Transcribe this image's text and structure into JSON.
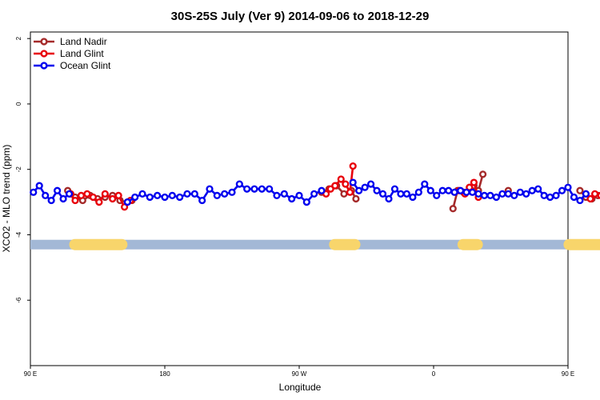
{
  "chart_data": {
    "type": "line",
    "title": "30S-25S July (Ver 9)   2014-09-06 to 2018-12-29",
    "xlabel": "Longitude",
    "ylabel": "XCO2 - MLO trend (ppm)",
    "xlim": [
      90,
      450
    ],
    "ylim": [
      -8,
      2.2
    ],
    "x_ticks": [
      {
        "value": 90,
        "label": "90 E"
      },
      {
        "value": 180,
        "label": "180"
      },
      {
        "value": 270,
        "label": "90 W"
      },
      {
        "value": 360,
        "label": "0"
      },
      {
        "value": 450,
        "label": "90 E"
      },
      {
        "value": 540,
        "label": "180"
      }
    ],
    "y_ticks": [
      {
        "value": 2,
        "label": "2"
      },
      {
        "value": 0,
        "label": "0"
      },
      {
        "value": -2,
        "label": "-2"
      },
      {
        "value": -4,
        "label": "-4"
      },
      {
        "value": -6,
        "label": "-6"
      }
    ],
    "legend_position": "top-left",
    "land_ocean_bar": {
      "y": -4.3,
      "ocean_color": "#a3b8d6",
      "land_color": "#f8d56b",
      "land_ranges": [
        [
          116,
          155
        ],
        [
          290,
          311
        ],
        [
          376,
          393
        ],
        [
          447,
          487
        ]
      ]
    },
    "series": [
      {
        "name": "Land Nadir",
        "color": "#a52a2a",
        "segments": [
          {
            "x": [
              115,
              120,
              125,
              130,
              135,
              140,
              145,
              150,
              155,
              158
            ],
            "y": [
              -2.65,
              -2.85,
              -2.95,
              -2.8,
              -2.9,
              -2.85,
              -2.8,
              -2.95,
              -3.0,
              -2.95
            ]
          },
          {
            "x": [
              285,
              290,
              295,
              300,
              305,
              308
            ],
            "y": [
              -2.7,
              -2.6,
              -2.5,
              -2.75,
              -2.65,
              -2.9
            ]
          },
          {
            "x": [
              373,
              376,
              380,
              384,
              387,
              390,
              393
            ],
            "y": [
              -3.2,
              -2.65,
              -2.7,
              -2.55,
              -2.5,
              -2.65,
              -2.15
            ]
          },
          {
            "x": [
              410
            ],
            "y": [
              -2.65
            ]
          },
          {
            "x": [
              458,
              462,
              466,
              470,
              475,
              480,
              485,
              490,
              495,
              500
            ],
            "y": [
              -2.65,
              -2.85,
              -2.9,
              -2.8,
              -2.85,
              -2.9,
              -2.8,
              -2.95,
              -2.9,
              -3.0
            ]
          }
        ]
      },
      {
        "name": "Land Glint",
        "color": "#e8000b",
        "segments": [
          {
            "x": [
              117,
              120,
              124,
              128,
              132,
              136,
              140,
              145,
              149,
              153,
              157
            ],
            "y": [
              -2.75,
              -2.95,
              -2.8,
              -2.75,
              -2.85,
              -3.0,
              -2.75,
              -2.9,
              -2.8,
              -3.15,
              -2.95
            ]
          },
          {
            "x": [
              288,
              291,
              294,
              298,
              301,
              304,
              306
            ],
            "y": [
              -2.75,
              -2.6,
              -2.5,
              -2.3,
              -2.45,
              -2.7,
              -1.9
            ]
          },
          {
            "x": [
              377,
              381,
              384,
              387,
              390
            ],
            "y": [
              -2.65,
              -2.75,
              -2.55,
              -2.4,
              -2.85
            ]
          },
          {
            "x": [
              462,
              465,
              468,
              472,
              475,
              479,
              483,
              487,
              490,
              494,
              497,
              500
            ],
            "y": [
              -2.75,
              -2.9,
              -2.75,
              -2.8,
              -2.85,
              -3.05,
              -2.75,
              -2.9,
              -2.8,
              -2.85,
              -3.15,
              -2.95
            ]
          }
        ]
      },
      {
        "name": "Ocean Glint",
        "color": "#0000ee",
        "segments": [
          {
            "x": [
              92,
              96,
              100,
              104,
              108,
              112,
              116
            ],
            "y": [
              -2.7,
              -2.5,
              -2.8,
              -2.95,
              -2.65,
              -2.9,
              -2.75
            ]
          },
          {
            "x": [
              155,
              160,
              165,
              170,
              175,
              180,
              185,
              190,
              195,
              200,
              205,
              210,
              215,
              220,
              225,
              230,
              235,
              240,
              245,
              250,
              255,
              260,
              265,
              270,
              275,
              280,
              285
            ],
            "y": [
              -3.0,
              -2.85,
              -2.75,
              -2.85,
              -2.8,
              -2.85,
              -2.8,
              -2.85,
              -2.75,
              -2.75,
              -2.95,
              -2.6,
              -2.8,
              -2.75,
              -2.7,
              -2.45,
              -2.6,
              -2.6,
              -2.6,
              -2.6,
              -2.8,
              -2.75,
              -2.9,
              -2.8,
              -3.0,
              -2.75,
              -2.65
            ]
          },
          {
            "x": [
              306,
              310,
              314,
              318,
              322,
              326,
              330,
              334,
              338,
              342,
              346,
              350,
              354,
              358,
              362,
              366,
              370,
              374,
              378,
              382,
              386,
              390,
              394,
              398,
              402,
              406,
              410,
              414,
              418,
              422,
              426,
              430,
              434,
              438,
              442,
              446,
              450,
              454,
              458,
              462
            ],
            "y": [
              -2.4,
              -2.65,
              -2.55,
              -2.45,
              -2.65,
              -2.75,
              -2.9,
              -2.6,
              -2.75,
              -2.75,
              -2.85,
              -2.7,
              -2.45,
              -2.65,
              -2.8,
              -2.65,
              -2.65,
              -2.7,
              -2.65,
              -2.7,
              -2.7,
              -2.75,
              -2.8,
              -2.8,
              -2.85,
              -2.75,
              -2.75,
              -2.8,
              -2.7,
              -2.75,
              -2.65,
              -2.6,
              -2.8,
              -2.85,
              -2.8,
              -2.65,
              -2.55,
              -2.85,
              -2.95,
              -2.75
            ]
          },
          {
            "x": [
              500,
              505,
              510,
              515,
              520,
              525
            ],
            "y": [
              -2.9,
              -3.0,
              -2.85,
              -2.75,
              -2.8,
              -2.85
            ]
          }
        ]
      }
    ]
  }
}
